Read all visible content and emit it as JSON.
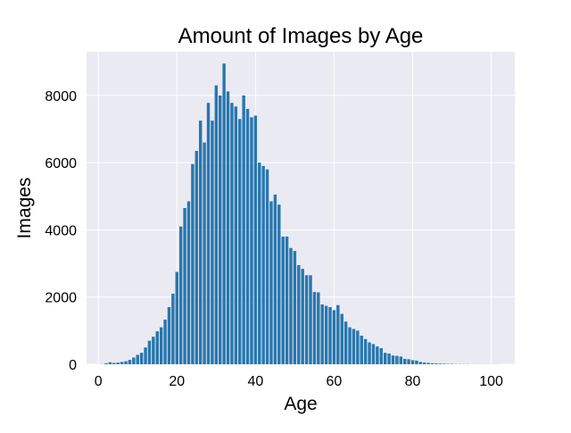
{
  "chart_data": {
    "type": "bar",
    "title": "Amount of Images by Age",
    "xlabel": "Age",
    "ylabel": "Images",
    "xlim": [
      -3,
      106
    ],
    "ylim": [
      0,
      9300
    ],
    "xticks": [
      0,
      20,
      40,
      60,
      80,
      100
    ],
    "yticks": [
      0,
      2000,
      4000,
      6000,
      8000
    ],
    "grid": true,
    "colors": {
      "bar": "#2877ae",
      "plot_background": "#eaeaf2",
      "grid": "#ffffff"
    },
    "x": [
      1,
      2,
      3,
      4,
      5,
      6,
      7,
      8,
      9,
      10,
      11,
      12,
      13,
      14,
      15,
      16,
      17,
      18,
      19,
      20,
      21,
      22,
      23,
      24,
      25,
      26,
      27,
      28,
      29,
      30,
      31,
      32,
      33,
      34,
      35,
      36,
      37,
      38,
      39,
      40,
      41,
      42,
      43,
      44,
      45,
      46,
      47,
      48,
      49,
      50,
      51,
      52,
      53,
      54,
      55,
      56,
      57,
      58,
      59,
      60,
      61,
      62,
      63,
      64,
      65,
      66,
      67,
      68,
      69,
      70,
      71,
      72,
      73,
      74,
      75,
      76,
      77,
      78,
      79,
      80,
      81,
      82,
      83,
      84,
      85,
      86,
      87,
      88,
      89,
      90,
      91,
      92,
      93,
      94,
      95,
      96,
      97,
      98,
      99,
      100,
      101,
      102
    ],
    "values": [
      5,
      30,
      60,
      40,
      50,
      70,
      90,
      130,
      200,
      280,
      340,
      500,
      700,
      820,
      980,
      1100,
      1330,
      1700,
      2100,
      2750,
      4100,
      4650,
      4850,
      5960,
      6350,
      7250,
      6600,
      7780,
      7250,
      8300,
      8000,
      8950,
      8120,
      7780,
      7670,
      7300,
      8000,
      7600,
      7350,
      7400,
      6000,
      5900,
      5800,
      4850,
      5050,
      4750,
      3800,
      3800,
      3460,
      3370,
      2950,
      2840,
      2650,
      2650,
      2150,
      2140,
      1780,
      1740,
      1700,
      1610,
      1760,
      1500,
      1270,
      1100,
      1050,
      1000,
      850,
      750,
      650,
      600,
      530,
      480,
      340,
      320,
      260,
      250,
      230,
      160,
      150,
      120,
      110,
      70,
      50,
      40,
      30,
      25,
      20,
      15,
      10,
      10,
      5,
      5,
      5,
      5,
      3,
      3,
      3,
      3,
      2,
      2,
      2,
      2
    ]
  }
}
